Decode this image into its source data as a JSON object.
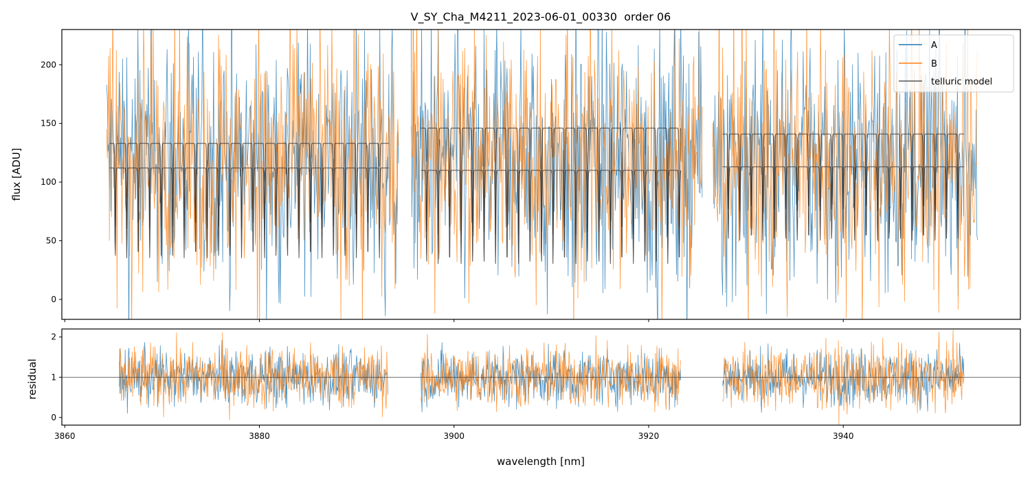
{
  "chart_data": [
    {
      "type": "line",
      "title": "V_SY_Cha_M4211_2023-06-01_00330  order 06",
      "xlabel": "",
      "ylabel": "flux [ADU]",
      "xlim": [
        3859.7,
        3958.2
      ],
      "ylim": [
        -17,
        230
      ],
      "yticks": [
        0,
        50,
        100,
        150,
        200
      ],
      "xticks": [
        3860,
        3880,
        3900,
        3920,
        3940
      ],
      "legend": {
        "placement": "top-right",
        "entries": [
          "A",
          "B",
          "telluric model"
        ]
      },
      "series": [
        {
          "name": "A",
          "color": "#1f77b4",
          "segments": [
            [
              3864.3,
              3894.3
            ],
            [
              3895.6,
              3925.5
            ],
            [
              3926.6,
              3953.8
            ]
          ],
          "mean_level": 120,
          "scatter": 55
        },
        {
          "name": "B",
          "color": "#ff7f0e",
          "segments": [
            [
              3864.3,
              3894.3
            ],
            [
              3895.6,
              3925.5
            ],
            [
              3926.6,
              3953.8
            ]
          ],
          "mean_level": 120,
          "scatter": 55
        },
        {
          "name": "telluric model",
          "color": "#333333",
          "segments": [
            {
              "range": [
                3864.6,
                3893.3
              ],
              "upper": 133,
              "lower": 112,
              "dip_min": 35
            },
            {
              "range": [
                3896.6,
                3923.3
              ],
              "upper": 146,
              "lower": 110,
              "dip_min": 30
            },
            {
              "range": [
                3927.6,
                3952.4
              ],
              "upper": 141,
              "lower": 113,
              "dip_min": 50
            }
          ],
          "line_spacing_nm": 1.18
        }
      ]
    },
    {
      "type": "line",
      "xlabel": "wavelength [nm]",
      "ylabel": "residual",
      "xlim": [
        3859.7,
        3958.2
      ],
      "ylim": [
        -0.19,
        2.2
      ],
      "yticks": [
        0,
        1,
        2
      ],
      "xticks": [
        3860,
        3880,
        3900,
        3920,
        3940
      ],
      "reference_line": 1,
      "series": [
        {
          "name": "A",
          "color": "#1f77b4",
          "segments": [
            [
              3865.6,
              3893.2
            ],
            [
              3896.6,
              3923.3
            ],
            [
              3927.6,
              3952.4
            ]
          ],
          "mean": 1,
          "scatter": 0.35
        },
        {
          "name": "B",
          "color": "#ff7f0e",
          "segments": [
            [
              3865.6,
              3893.2
            ],
            [
              3896.6,
              3923.3
            ],
            [
              3927.6,
              3952.4
            ]
          ],
          "mean": 1,
          "scatter": 0.4
        }
      ]
    }
  ]
}
